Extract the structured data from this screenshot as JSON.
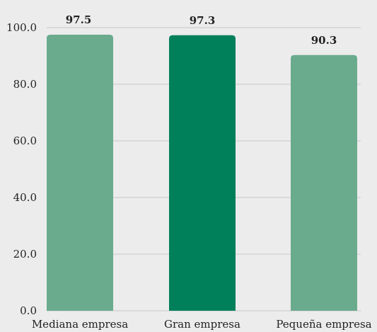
{
  "chart_data": {
    "type": "bar",
    "categories": [
      "Mediana empresa",
      "Gran empresa",
      "Pequeña empresa"
    ],
    "values": [
      97.5,
      97.3,
      90.3
    ],
    "data_labels": [
      "97.5",
      "97.3",
      "90.3"
    ],
    "y_ticks": [
      "0.0",
      "20.0",
      "40.0",
      "60.0",
      "80.0",
      "100.0"
    ],
    "ylim": [
      0,
      100
    ],
    "grid": true,
    "colors": [
      "#6aab8e",
      "#00805a",
      "#6aab8e"
    ]
  }
}
